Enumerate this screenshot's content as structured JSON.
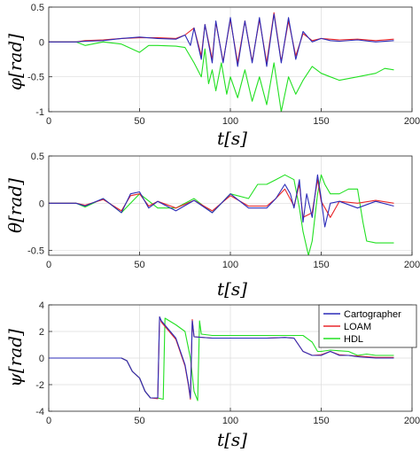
{
  "colors": {
    "Cartographer": "#2b2bb8",
    "LOAM": "#e8272b",
    "HDL": "#22e022",
    "grid": "#dcdcdc",
    "axis": "#262626"
  },
  "chart_data": [
    {
      "type": "line",
      "title": "",
      "xlabel": "t[s]",
      "ylabel": "φ[rad]",
      "xlim": [
        0,
        200
      ],
      "ylim": [
        -1,
        0.5
      ],
      "xticks": [
        "0",
        "50",
        "100",
        "150",
        "200"
      ],
      "yticks": [
        "0.5",
        "0",
        "-0.5",
        "-1"
      ],
      "grid": true,
      "series": [
        {
          "name": "Cartographer",
          "x": [
            0,
            15,
            20,
            30,
            40,
            50,
            60,
            70,
            75,
            78,
            80,
            84,
            86,
            90,
            92,
            96,
            100,
            104,
            108,
            112,
            116,
            120,
            124,
            128,
            132,
            136,
            140,
            145,
            150,
            155,
            160,
            170,
            180,
            190
          ],
          "y": [
            0,
            0,
            0.01,
            0.02,
            0.05,
            0.07,
            0.05,
            0.04,
            0.1,
            -0.05,
            0.2,
            -0.25,
            0.25,
            -0.3,
            0.3,
            -0.3,
            0.35,
            -0.35,
            0.3,
            -0.3,
            0.35,
            -0.35,
            0.4,
            -0.3,
            0.35,
            -0.25,
            0.15,
            0,
            0.05,
            0.02,
            0.01,
            0.03,
            0,
            0.02
          ]
        },
        {
          "name": "LOAM",
          "x": [
            0,
            15,
            20,
            30,
            40,
            50,
            60,
            70,
            75,
            80,
            84,
            86,
            90,
            92,
            96,
            100,
            104,
            108,
            112,
            116,
            120,
            124,
            128,
            132,
            136,
            140,
            145,
            150,
            160,
            170,
            180,
            190
          ],
          "y": [
            0,
            0,
            0.02,
            0.03,
            0.05,
            0.06,
            0.06,
            0.05,
            0.1,
            0.2,
            -0.2,
            0.25,
            -0.25,
            0.28,
            -0.28,
            0.32,
            -0.3,
            0.3,
            -0.28,
            0.32,
            -0.3,
            0.42,
            -0.28,
            0.3,
            -0.2,
            0.12,
            0.02,
            0.05,
            0.03,
            0.04,
            0.02,
            0.04
          ]
        },
        {
          "name": "HDL",
          "x": [
            0,
            15,
            20,
            30,
            40,
            50,
            55,
            60,
            70,
            75,
            80,
            84,
            86,
            88,
            90,
            92,
            95,
            98,
            100,
            104,
            108,
            112,
            116,
            120,
            124,
            128,
            132,
            136,
            140,
            145,
            150,
            155,
            160,
            170,
            180,
            185,
            190
          ],
          "y": [
            0,
            0,
            -0.05,
            0,
            -0.03,
            -0.15,
            -0.05,
            -0.05,
            -0.06,
            -0.08,
            -0.3,
            -0.5,
            -0.1,
            -0.6,
            -0.4,
            -0.7,
            -0.3,
            -0.75,
            -0.5,
            -0.8,
            -0.4,
            -0.85,
            -0.5,
            -0.9,
            -0.3,
            -1.0,
            -0.5,
            -0.75,
            -0.55,
            -0.35,
            -0.45,
            -0.5,
            -0.55,
            -0.5,
            -0.45,
            -0.38,
            -0.4
          ]
        }
      ]
    },
    {
      "type": "line",
      "title": "",
      "xlabel": "t[s]",
      "ylabel": "θ[rad]",
      "xlim": [
        0,
        200
      ],
      "ylim": [
        -0.55,
        0.5
      ],
      "xticks": [
        "0",
        "50",
        "100",
        "150",
        "200"
      ],
      "yticks": [
        "0.5",
        "0",
        "-0.5"
      ],
      "grid": true,
      "series": [
        {
          "name": "Cartographer",
          "x": [
            0,
            15,
            20,
            30,
            40,
            45,
            50,
            55,
            60,
            70,
            80,
            90,
            100,
            110,
            120,
            125,
            130,
            133,
            135,
            138,
            140,
            142,
            145,
            148,
            150,
            152,
            155,
            160,
            170,
            180,
            190
          ],
          "y": [
            0,
            0,
            -0.03,
            0.05,
            -0.1,
            0.1,
            0.12,
            -0.05,
            0.02,
            -0.08,
            0.03,
            -0.1,
            0.1,
            -0.05,
            -0.05,
            0.05,
            0.2,
            0.1,
            -0.05,
            0.25,
            -0.2,
            0.1,
            -0.15,
            0.3,
            0.05,
            -0.25,
            0,
            0.02,
            -0.05,
            0.02,
            -0.03
          ]
        },
        {
          "name": "LOAM",
          "x": [
            0,
            15,
            20,
            30,
            40,
            45,
            50,
            55,
            60,
            70,
            80,
            90,
            100,
            110,
            120,
            125,
            130,
            135,
            138,
            140,
            145,
            148,
            150,
            155,
            160,
            170,
            180,
            190
          ],
          "y": [
            0,
            0,
            -0.02,
            0.04,
            -0.08,
            0.08,
            0.1,
            -0.03,
            0.02,
            -0.05,
            0.03,
            -0.08,
            0.08,
            -0.03,
            -0.03,
            0.05,
            0.15,
            -0.03,
            0.2,
            -0.15,
            -0.1,
            0.25,
            0.02,
            -0.15,
            0.02,
            0,
            0.03,
            0
          ]
        },
        {
          "name": "HDL",
          "x": [
            0,
            15,
            20,
            30,
            40,
            50,
            60,
            70,
            80,
            90,
            100,
            110,
            115,
            120,
            125,
            130,
            135,
            138,
            140,
            143,
            145,
            148,
            150,
            152,
            155,
            160,
            165,
            170,
            173,
            175,
            180,
            190
          ],
          "y": [
            0,
            0,
            -0.04,
            0.05,
            -0.1,
            0.1,
            -0.05,
            -0.05,
            0.05,
            -0.1,
            0.1,
            0.05,
            0.2,
            0.2,
            0.25,
            0.3,
            0.25,
            -0.05,
            -0.3,
            -0.55,
            -0.4,
            0.1,
            0.3,
            0.2,
            0.1,
            0.1,
            0.15,
            0.15,
            -0.2,
            -0.4,
            -0.42,
            -0.42
          ]
        }
      ]
    },
    {
      "type": "line",
      "title": "",
      "xlabel": "t[s]",
      "ylabel": "ψ[rad]",
      "xlim": [
        0,
        200
      ],
      "ylim": [
        -4,
        4
      ],
      "xticks": [
        "0",
        "50",
        "100",
        "150",
        "200"
      ],
      "yticks": [
        "4",
        "2",
        "0",
        "-2",
        "-4"
      ],
      "grid": true,
      "legend": {
        "position": "top-right",
        "entries": [
          "Cartographer",
          "LOAM",
          "HDL"
        ]
      },
      "series": [
        {
          "name": "Cartographer",
          "x": [
            0,
            40,
            43,
            46,
            50,
            53,
            56,
            60,
            61,
            62,
            70,
            75,
            77,
            78,
            79,
            80,
            90,
            100,
            110,
            120,
            130,
            135,
            140,
            145,
            150,
            155,
            160,
            165,
            170,
            180,
            190
          ],
          "y": [
            0,
            0,
            -0.2,
            -1,
            -1.5,
            -2.5,
            -3,
            -3,
            3.1,
            2.8,
            1.5,
            -0.5,
            -2,
            -3,
            2.8,
            1.6,
            1.5,
            1.5,
            1.5,
            1.5,
            1.55,
            1.5,
            0.5,
            0.2,
            0.2,
            0.5,
            0.2,
            0.2,
            0.1,
            0,
            0
          ]
        },
        {
          "name": "LOAM",
          "x": [
            0,
            40,
            43,
            46,
            50,
            53,
            56,
            60,
            61,
            62,
            70,
            75,
            77,
            78,
            79,
            80,
            90,
            100,
            110,
            120,
            130,
            135,
            140,
            145,
            150,
            155,
            160,
            165,
            170,
            180,
            190
          ],
          "y": [
            0,
            0,
            -0.2,
            -1,
            -1.5,
            -2.5,
            -3,
            -3.05,
            3.1,
            2.7,
            1.4,
            -0.6,
            -2.1,
            -3.1,
            2.9,
            1.6,
            1.5,
            1.5,
            1.5,
            1.5,
            1.55,
            1.5,
            0.5,
            0.2,
            0.25,
            0.5,
            0.25,
            0.2,
            0.15,
            0.05,
            0.05
          ]
        },
        {
          "name": "HDL",
          "x": [
            0,
            40,
            43,
            46,
            50,
            53,
            56,
            60,
            63,
            64,
            70,
            75,
            78,
            80,
            82,
            83,
            84,
            90,
            100,
            110,
            120,
            130,
            140,
            145,
            148,
            150,
            155,
            160,
            165,
            170,
            175,
            180,
            190
          ],
          "y": [
            0,
            0,
            -0.2,
            -1,
            -1.5,
            -2.5,
            -3,
            -3,
            -3.1,
            3,
            2.5,
            2,
            0,
            -2.5,
            -3.2,
            2.8,
            1.8,
            1.7,
            1.7,
            1.7,
            1.7,
            1.7,
            1.7,
            1.2,
            0.5,
            0.5,
            0.6,
            0.55,
            0.5,
            0.2,
            0.3,
            0.2,
            0.2
          ]
        }
      ]
    }
  ]
}
